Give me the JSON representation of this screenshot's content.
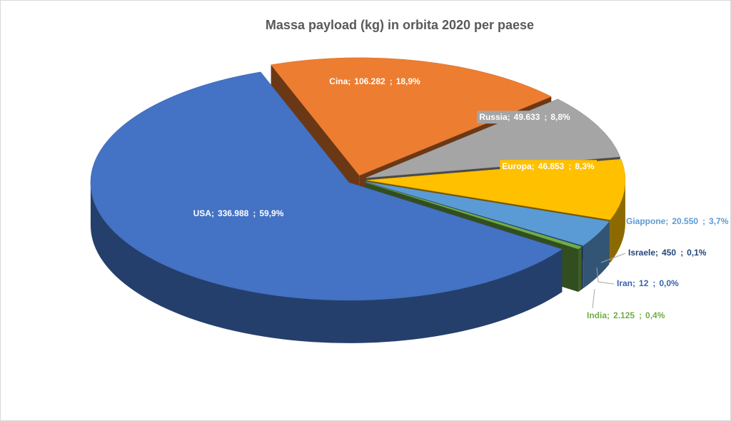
{
  "chart_data": {
    "type": "pie",
    "title": "Massa payload (kg) in orbita 2020 per paese",
    "categories": [
      "Cina",
      "Russia",
      "Europa",
      "Giappone",
      "Israele",
      "Iran",
      "India",
      "USA"
    ],
    "values": [
      106282,
      49633,
      46853,
      20550,
      450,
      12,
      2125,
      336988
    ],
    "value_labels": [
      "106.282",
      "49.633",
      "46.853",
      "20.550",
      "450",
      "12",
      "2.125",
      "336.988"
    ],
    "percent_labels": [
      "18,9%",
      "8,8%",
      "8,3%",
      "3,7%",
      "0,1%",
      "0,0%",
      "0,4%",
      "59,9%"
    ],
    "label_separator": ";",
    "colors": [
      "#ed7d31",
      "#a5a5a5",
      "#ffc000",
      "#5b9bd5",
      "#264478",
      "#3a62ad",
      "#70ad47",
      "#4472c4"
    ]
  }
}
